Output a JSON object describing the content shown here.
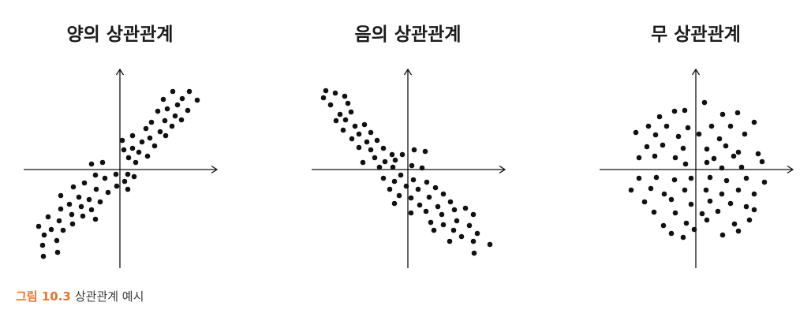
{
  "figure": {
    "caption_label": "그림 10.3",
    "caption_text": "상관관계 예시"
  },
  "colors": {
    "ink": "#111111",
    "caption_label": "#e8742c",
    "caption_text": "#3a3a3a"
  },
  "chart_data": [
    {
      "type": "scatter",
      "title": "양의 상관관계",
      "grid": false,
      "xlim": [
        -12.2,
        12.3
      ],
      "ylim": [
        -12.5,
        12.7
      ],
      "points": [
        [
          6.7,
          9.9
        ],
        [
          8.8,
          9.9
        ],
        [
          7.9,
          9.0
        ],
        [
          9.8,
          8.8
        ],
        [
          5.5,
          8.9
        ],
        [
          7.3,
          8.2
        ],
        [
          6.0,
          7.7
        ],
        [
          8.6,
          7.5
        ],
        [
          4.8,
          7.4
        ],
        [
          7.0,
          6.8
        ],
        [
          7.8,
          6.3
        ],
        [
          5.7,
          6.2
        ],
        [
          4.0,
          6.0
        ],
        [
          6.6,
          5.5
        ],
        [
          3.3,
          5.2
        ],
        [
          5.1,
          4.8
        ],
        [
          1.6,
          4.3
        ],
        [
          3.8,
          4.0
        ],
        [
          5.8,
          4.3
        ],
        [
          2.8,
          3.5
        ],
        [
          4.4,
          3.0
        ],
        [
          0.3,
          3.7
        ],
        [
          1.6,
          2.7
        ],
        [
          0.5,
          2.5
        ],
        [
          2.4,
          2.2
        ],
        [
          3.5,
          1.7
        ],
        [
          1.1,
          1.5
        ],
        [
          2.0,
          0.9
        ],
        [
          -3.6,
          0.7
        ],
        [
          -2.2,
          0.9
        ],
        [
          -0.5,
          -0.6
        ],
        [
          1.0,
          -0.6
        ],
        [
          1.8,
          -0.9
        ],
        [
          0.6,
          -1.5
        ],
        [
          -3.1,
          -0.7
        ],
        [
          -1.9,
          -1.1
        ],
        [
          -0.4,
          -2.1
        ],
        [
          1.0,
          -2.5
        ],
        [
          -4.5,
          -1.7
        ],
        [
          -5.9,
          -2.2
        ],
        [
          -3.0,
          -2.5
        ],
        [
          -1.5,
          -2.9
        ],
        [
          -5.2,
          -3.5
        ],
        [
          -3.9,
          -3.8
        ],
        [
          -2.5,
          -4.1
        ],
        [
          -7.5,
          -3.3
        ],
        [
          -6.4,
          -4.4
        ],
        [
          -4.9,
          -4.7
        ],
        [
          -3.6,
          -5.1
        ],
        [
          -7.5,
          -5.0
        ],
        [
          -6.1,
          -5.7
        ],
        [
          -4.7,
          -5.9
        ],
        [
          -3.1,
          -6.3
        ],
        [
          -9.1,
          -6.0
        ],
        [
          -7.7,
          -6.5
        ],
        [
          -6.0,
          -6.9
        ],
        [
          -10.3,
          -7.2
        ],
        [
          -8.7,
          -7.6
        ],
        [
          -7.2,
          -7.7
        ],
        [
          -9.6,
          -8.3
        ],
        [
          -8.0,
          -9.0
        ],
        [
          -9.8,
          -9.6
        ],
        [
          -7.9,
          -10.5
        ],
        [
          -9.7,
          -11.0
        ]
      ]
    },
    {
      "type": "scatter",
      "title": "음의 상관관계",
      "grid": false,
      "xlim": [
        -12.2,
        12.3
      ],
      "ylim": [
        -12.5,
        12.7
      ],
      "points": [
        [
          -10.4,
          10.0
        ],
        [
          -9.2,
          9.7
        ],
        [
          -10.7,
          9.1
        ],
        [
          -8.0,
          9.3
        ],
        [
          -9.8,
          8.2
        ],
        [
          -7.6,
          8.4
        ],
        [
          -8.6,
          7.0
        ],
        [
          -7.2,
          7.3
        ],
        [
          -9.1,
          6.2
        ],
        [
          -7.9,
          6.3
        ],
        [
          -6.7,
          5.5
        ],
        [
          -5.5,
          5.7
        ],
        [
          -8.2,
          5.0
        ],
        [
          -6.2,
          4.5
        ],
        [
          -4.7,
          4.7
        ],
        [
          -7.1,
          3.9
        ],
        [
          -5.2,
          3.5
        ],
        [
          -3.9,
          3.7
        ],
        [
          -6.2,
          2.8
        ],
        [
          -4.7,
          2.5
        ],
        [
          -3.1,
          2.7
        ],
        [
          -2.0,
          1.9
        ],
        [
          0.8,
          2.5
        ],
        [
          2.2,
          2.3
        ],
        [
          -5.7,
          0.9
        ],
        [
          -4.2,
          1.5
        ],
        [
          -2.9,
          1.0
        ],
        [
          -1.6,
          1.2
        ],
        [
          -0.7,
          1.9
        ],
        [
          -3.6,
          0.3
        ],
        [
          -1.9,
          0.3
        ],
        [
          0.5,
          0.5
        ],
        [
          1.8,
          0.2
        ],
        [
          -0.9,
          -0.7
        ],
        [
          -3.1,
          -1.1
        ],
        [
          -1.7,
          -1.5
        ],
        [
          0.7,
          -1.3
        ],
        [
          2.4,
          -1.6
        ],
        [
          -0.2,
          -2.1
        ],
        [
          1.3,
          -2.5
        ],
        [
          3.5,
          -2.3
        ],
        [
          -2.3,
          -2.5
        ],
        [
          -1.1,
          -3.3
        ],
        [
          0.4,
          -3.6
        ],
        [
          2.7,
          -3.5
        ],
        [
          4.5,
          -3.1
        ],
        [
          -1.7,
          -4.3
        ],
        [
          1.5,
          -4.5
        ],
        [
          3.8,
          -4.7
        ],
        [
          5.4,
          -4.1
        ],
        [
          0.4,
          -5.5
        ],
        [
          2.3,
          -5.3
        ],
        [
          4.3,
          -5.7
        ],
        [
          5.9,
          -5.1
        ],
        [
          7.3,
          -4.9
        ],
        [
          8.3,
          -5.7
        ],
        [
          2.9,
          -6.7
        ],
        [
          4.5,
          -7.0
        ],
        [
          6.2,
          -6.5
        ],
        [
          7.8,
          -7.1
        ],
        [
          3.3,
          -7.7
        ],
        [
          5.8,
          -7.7
        ],
        [
          8.8,
          -8.1
        ],
        [
          6.8,
          -8.5
        ],
        [
          5.3,
          -9.1
        ],
        [
          8.3,
          -9.1
        ],
        [
          10.4,
          -9.5
        ],
        [
          8.4,
          -10.6
        ]
      ]
    },
    {
      "type": "scatter",
      "title": "무 상관관계",
      "grid": false,
      "xlim": [
        -12.2,
        12.3
      ],
      "ylim": [
        -12.5,
        12.7
      ],
      "points": [
        [
          1.1,
          8.5
        ],
        [
          -2.7,
          7.4
        ],
        [
          -1.4,
          7.5
        ],
        [
          -4.6,
          6.7
        ],
        [
          3.4,
          7.0
        ],
        [
          5.3,
          7.2
        ],
        [
          -6.0,
          5.5
        ],
        [
          -3.7,
          5.5
        ],
        [
          -1.0,
          5.3
        ],
        [
          2.0,
          5.5
        ],
        [
          4.4,
          5.5
        ],
        [
          7.4,
          6.0
        ],
        [
          -7.6,
          4.7
        ],
        [
          -5.1,
          4.4
        ],
        [
          -2.2,
          4.2
        ],
        [
          0.4,
          4.5
        ],
        [
          3.0,
          3.9
        ],
        [
          6.2,
          4.5
        ],
        [
          -6.2,
          2.9
        ],
        [
          -4.2,
          3.1
        ],
        [
          -1.6,
          2.7
        ],
        [
          1.4,
          2.6
        ],
        [
          3.8,
          3.0
        ],
        [
          5.4,
          2.2
        ],
        [
          7.9,
          2.0
        ],
        [
          -7.2,
          1.5
        ],
        [
          -5.2,
          1.7
        ],
        [
          -2.6,
          1.5
        ],
        [
          2.3,
          1.4
        ],
        [
          4.8,
          1.7
        ],
        [
          -1.3,
          0.7
        ],
        [
          1.4,
          0.9
        ],
        [
          8.4,
          1.0
        ],
        [
          3.3,
          0.2
        ],
        [
          5.8,
          0.3
        ],
        [
          -7.2,
          -1.1
        ],
        [
          -5.0,
          -1.0
        ],
        [
          -2.7,
          -1.3
        ],
        [
          -0.6,
          -1.1
        ],
        [
          1.8,
          -1.0
        ],
        [
          3.9,
          -1.4
        ],
        [
          6.4,
          -1.1
        ],
        [
          8.7,
          -1.6
        ],
        [
          -8.2,
          -2.6
        ],
        [
          -5.7,
          -2.4
        ],
        [
          -4.0,
          -3.1
        ],
        [
          -1.4,
          -2.6
        ],
        [
          1.3,
          -2.6
        ],
        [
          3.3,
          -3.1
        ],
        [
          5.4,
          -2.6
        ],
        [
          7.4,
          -3.1
        ],
        [
          -6.5,
          -4.1
        ],
        [
          -3.1,
          -3.8
        ],
        [
          -0.6,
          -4.4
        ],
        [
          1.8,
          -4.0
        ],
        [
          4.4,
          -4.3
        ],
        [
          6.4,
          -4.7
        ],
        [
          -5.3,
          -5.4
        ],
        [
          -2.6,
          -5.5
        ],
        [
          0.8,
          -5.6
        ],
        [
          2.8,
          -5.3
        ],
        [
          7.4,
          -5.1
        ],
        [
          -4.1,
          -7.1
        ],
        [
          -1.2,
          -6.8
        ],
        [
          1.4,
          -6.4
        ],
        [
          4.9,
          -6.9
        ],
        [
          6.8,
          -6.4
        ],
        [
          -3.1,
          -8.1
        ],
        [
          -0.2,
          -7.6
        ],
        [
          3.4,
          -8.3
        ],
        [
          5.4,
          -7.8
        ],
        [
          -1.6,
          -8.6
        ]
      ]
    }
  ]
}
